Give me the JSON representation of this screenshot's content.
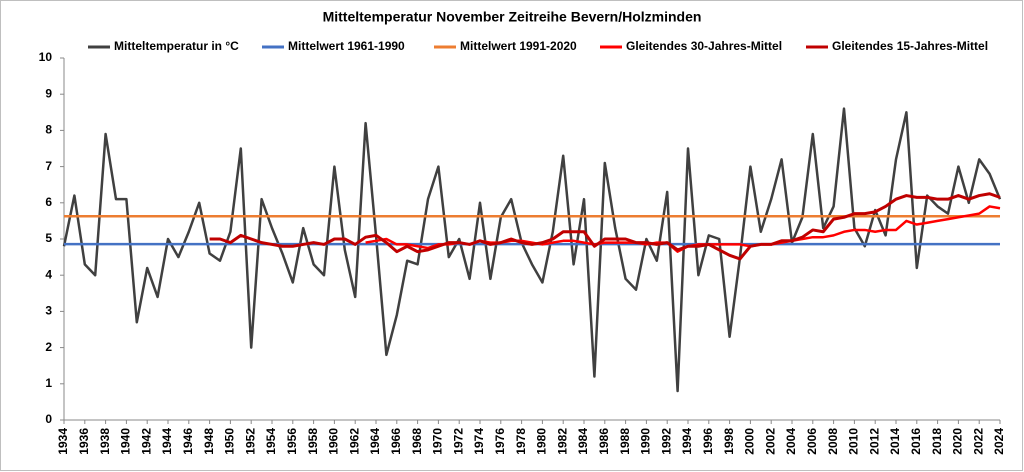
{
  "chart_data": {
    "type": "line",
    "title": "Mitteltemperatur November Zeitreihe Bevern/Holzminden",
    "x": [
      1934,
      1935,
      1936,
      1937,
      1938,
      1939,
      1940,
      1941,
      1942,
      1943,
      1944,
      1945,
      1946,
      1947,
      1948,
      1949,
      1950,
      1951,
      1952,
      1953,
      1954,
      1955,
      1956,
      1957,
      1958,
      1959,
      1960,
      1961,
      1962,
      1963,
      1964,
      1965,
      1966,
      1967,
      1968,
      1969,
      1970,
      1971,
      1972,
      1973,
      1974,
      1975,
      1976,
      1977,
      1978,
      1979,
      1980,
      1981,
      1982,
      1983,
      1984,
      1985,
      1986,
      1987,
      1988,
      1989,
      1990,
      1991,
      1992,
      1993,
      1994,
      1995,
      1996,
      1997,
      1998,
      1999,
      2000,
      2001,
      2002,
      2003,
      2004,
      2005,
      2006,
      2007,
      2008,
      2009,
      2010,
      2011,
      2012,
      2013,
      2014,
      2015,
      2016,
      2017,
      2018,
      2019,
      2020,
      2021,
      2022,
      2023,
      2024
    ],
    "series": [
      {
        "name": "Mitteltemperatur in °C",
        "color": "#404040",
        "values": [
          4.8,
          6.2,
          4.3,
          4.0,
          7.9,
          6.1,
          6.1,
          2.7,
          4.2,
          3.4,
          5.0,
          4.5,
          5.2,
          6.0,
          4.6,
          4.4,
          5.2,
          7.5,
          2.0,
          6.1,
          5.3,
          4.6,
          3.8,
          5.3,
          4.3,
          4.0,
          7.0,
          4.7,
          3.4,
          8.2,
          5.1,
          1.8,
          2.9,
          4.4,
          4.3,
          6.1,
          7.0,
          4.5,
          5.0,
          3.9,
          6.0,
          3.9,
          5.6,
          6.1,
          4.9,
          4.3,
          3.8,
          5.2,
          7.3,
          4.3,
          6.1,
          1.2,
          7.1,
          5.3,
          3.9,
          3.6,
          5.0,
          4.4,
          6.3,
          0.8,
          7.5,
          4.0,
          5.1,
          5.0,
          2.3,
          4.5,
          7.0,
          5.2,
          6.1,
          7.2,
          4.9,
          5.6,
          7.9,
          5.3,
          5.9,
          8.6,
          5.3,
          4.8,
          5.8,
          5.1,
          7.2,
          8.5,
          4.2,
          6.2,
          5.9,
          5.7,
          7.0,
          6.0,
          7.2,
          6.8,
          6.1
        ]
      },
      {
        "name": "Mittelwert 1961-1990",
        "color": "#4472c4",
        "value": 4.86
      },
      {
        "name": "Mittelwert 1991-2020",
        "color": "#ed7d31",
        "value": 5.63
      },
      {
        "name": "Gleitendes 30-Jahres-Mittel",
        "color": "#ff0000",
        "values": [
          null,
          null,
          null,
          null,
          null,
          null,
          null,
          null,
          null,
          null,
          null,
          null,
          null,
          null,
          null,
          null,
          null,
          null,
          null,
          null,
          null,
          null,
          null,
          null,
          null,
          null,
          null,
          null,
          null,
          4.9,
          4.95,
          5.0,
          4.85,
          4.85,
          4.8,
          4.75,
          4.85,
          4.85,
          4.9,
          4.85,
          4.95,
          4.9,
          4.9,
          4.95,
          4.95,
          4.9,
          4.85,
          4.9,
          4.95,
          4.95,
          4.9,
          4.85,
          4.9,
          4.9,
          4.9,
          4.9,
          4.85,
          4.9,
          4.9,
          4.65,
          4.8,
          4.85,
          4.85,
          4.85,
          4.85,
          4.85,
          4.8,
          4.85,
          4.85,
          4.9,
          4.95,
          5.0,
          5.05,
          5.05,
          5.1,
          5.2,
          5.25,
          5.25,
          5.2,
          5.25,
          5.25,
          5.5,
          5.4,
          5.45,
          5.5,
          5.55,
          5.6,
          5.65,
          5.7,
          5.9,
          5.85
        ]
      },
      {
        "name": "Gleitendes 15-Jahres-Mittel",
        "color": "#c00000",
        "values": [
          null,
          null,
          null,
          null,
          null,
          null,
          null,
          null,
          null,
          null,
          null,
          null,
          null,
          null,
          5.0,
          5.0,
          4.9,
          5.1,
          5.0,
          4.9,
          4.85,
          4.8,
          4.8,
          4.85,
          4.9,
          4.85,
          5.0,
          5.0,
          4.85,
          5.05,
          5.1,
          4.9,
          4.65,
          4.8,
          4.65,
          4.7,
          4.8,
          4.9,
          4.9,
          4.85,
          4.95,
          4.85,
          4.9,
          5.0,
          4.9,
          4.85,
          4.9,
          5.0,
          5.2,
          5.2,
          5.2,
          4.8,
          5.0,
          5.0,
          5.0,
          4.9,
          4.9,
          4.85,
          4.9,
          4.7,
          4.8,
          4.8,
          4.85,
          4.7,
          4.55,
          4.45,
          4.8,
          4.85,
          4.85,
          4.95,
          4.95,
          5.05,
          5.25,
          5.2,
          5.55,
          5.6,
          5.7,
          5.7,
          5.75,
          5.9,
          6.1,
          6.2,
          6.15,
          6.15,
          6.1,
          6.1,
          6.2,
          6.1,
          6.2,
          6.25,
          6.15
        ]
      }
    ],
    "xlim": [
      1934,
      2024
    ],
    "xticks": [
      1934,
      1936,
      1938,
      1940,
      1942,
      1944,
      1946,
      1948,
      1950,
      1952,
      1954,
      1956,
      1958,
      1960,
      1962,
      1964,
      1966,
      1968,
      1970,
      1972,
      1974,
      1976,
      1978,
      1980,
      1982,
      1984,
      1986,
      1988,
      1990,
      1992,
      1994,
      1996,
      1998,
      2000,
      2002,
      2004,
      2006,
      2008,
      2010,
      2012,
      2014,
      2016,
      2018,
      2020,
      2022,
      2024
    ],
    "ylim": [
      0,
      10
    ],
    "yticks": [
      0,
      1,
      2,
      3,
      4,
      5,
      6,
      7,
      8,
      9,
      10
    ],
    "legend": "top"
  }
}
